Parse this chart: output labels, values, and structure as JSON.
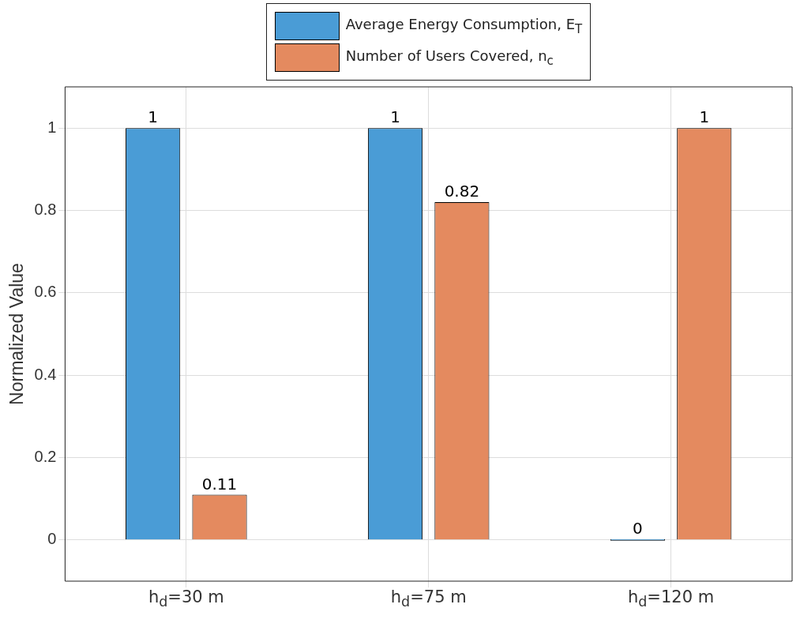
{
  "chart_data": {
    "type": "bar",
    "ylabel": "Normalized Value",
    "categories": [
      "h$_{d}$=30 m",
      "h$_{d}$=75 m",
      "h$_{d}$=120 m"
    ],
    "series": [
      {
        "name": "Average Energy Consumption, E$_{T}$",
        "color": "#4a9cd6",
        "values": [
          1,
          1,
          0
        ]
      },
      {
        "name": "Number of Users Covered, n$_{c}$",
        "color": "#e48a5f",
        "values": [
          0.11,
          0.82,
          1
        ]
      }
    ],
    "ylim": [
      -0.1,
      1.1
    ],
    "yticks": [
      0,
      0.2,
      0.4,
      0.6,
      0.8,
      1
    ],
    "grid": true,
    "legend": "top",
    "data_labels": true
  }
}
